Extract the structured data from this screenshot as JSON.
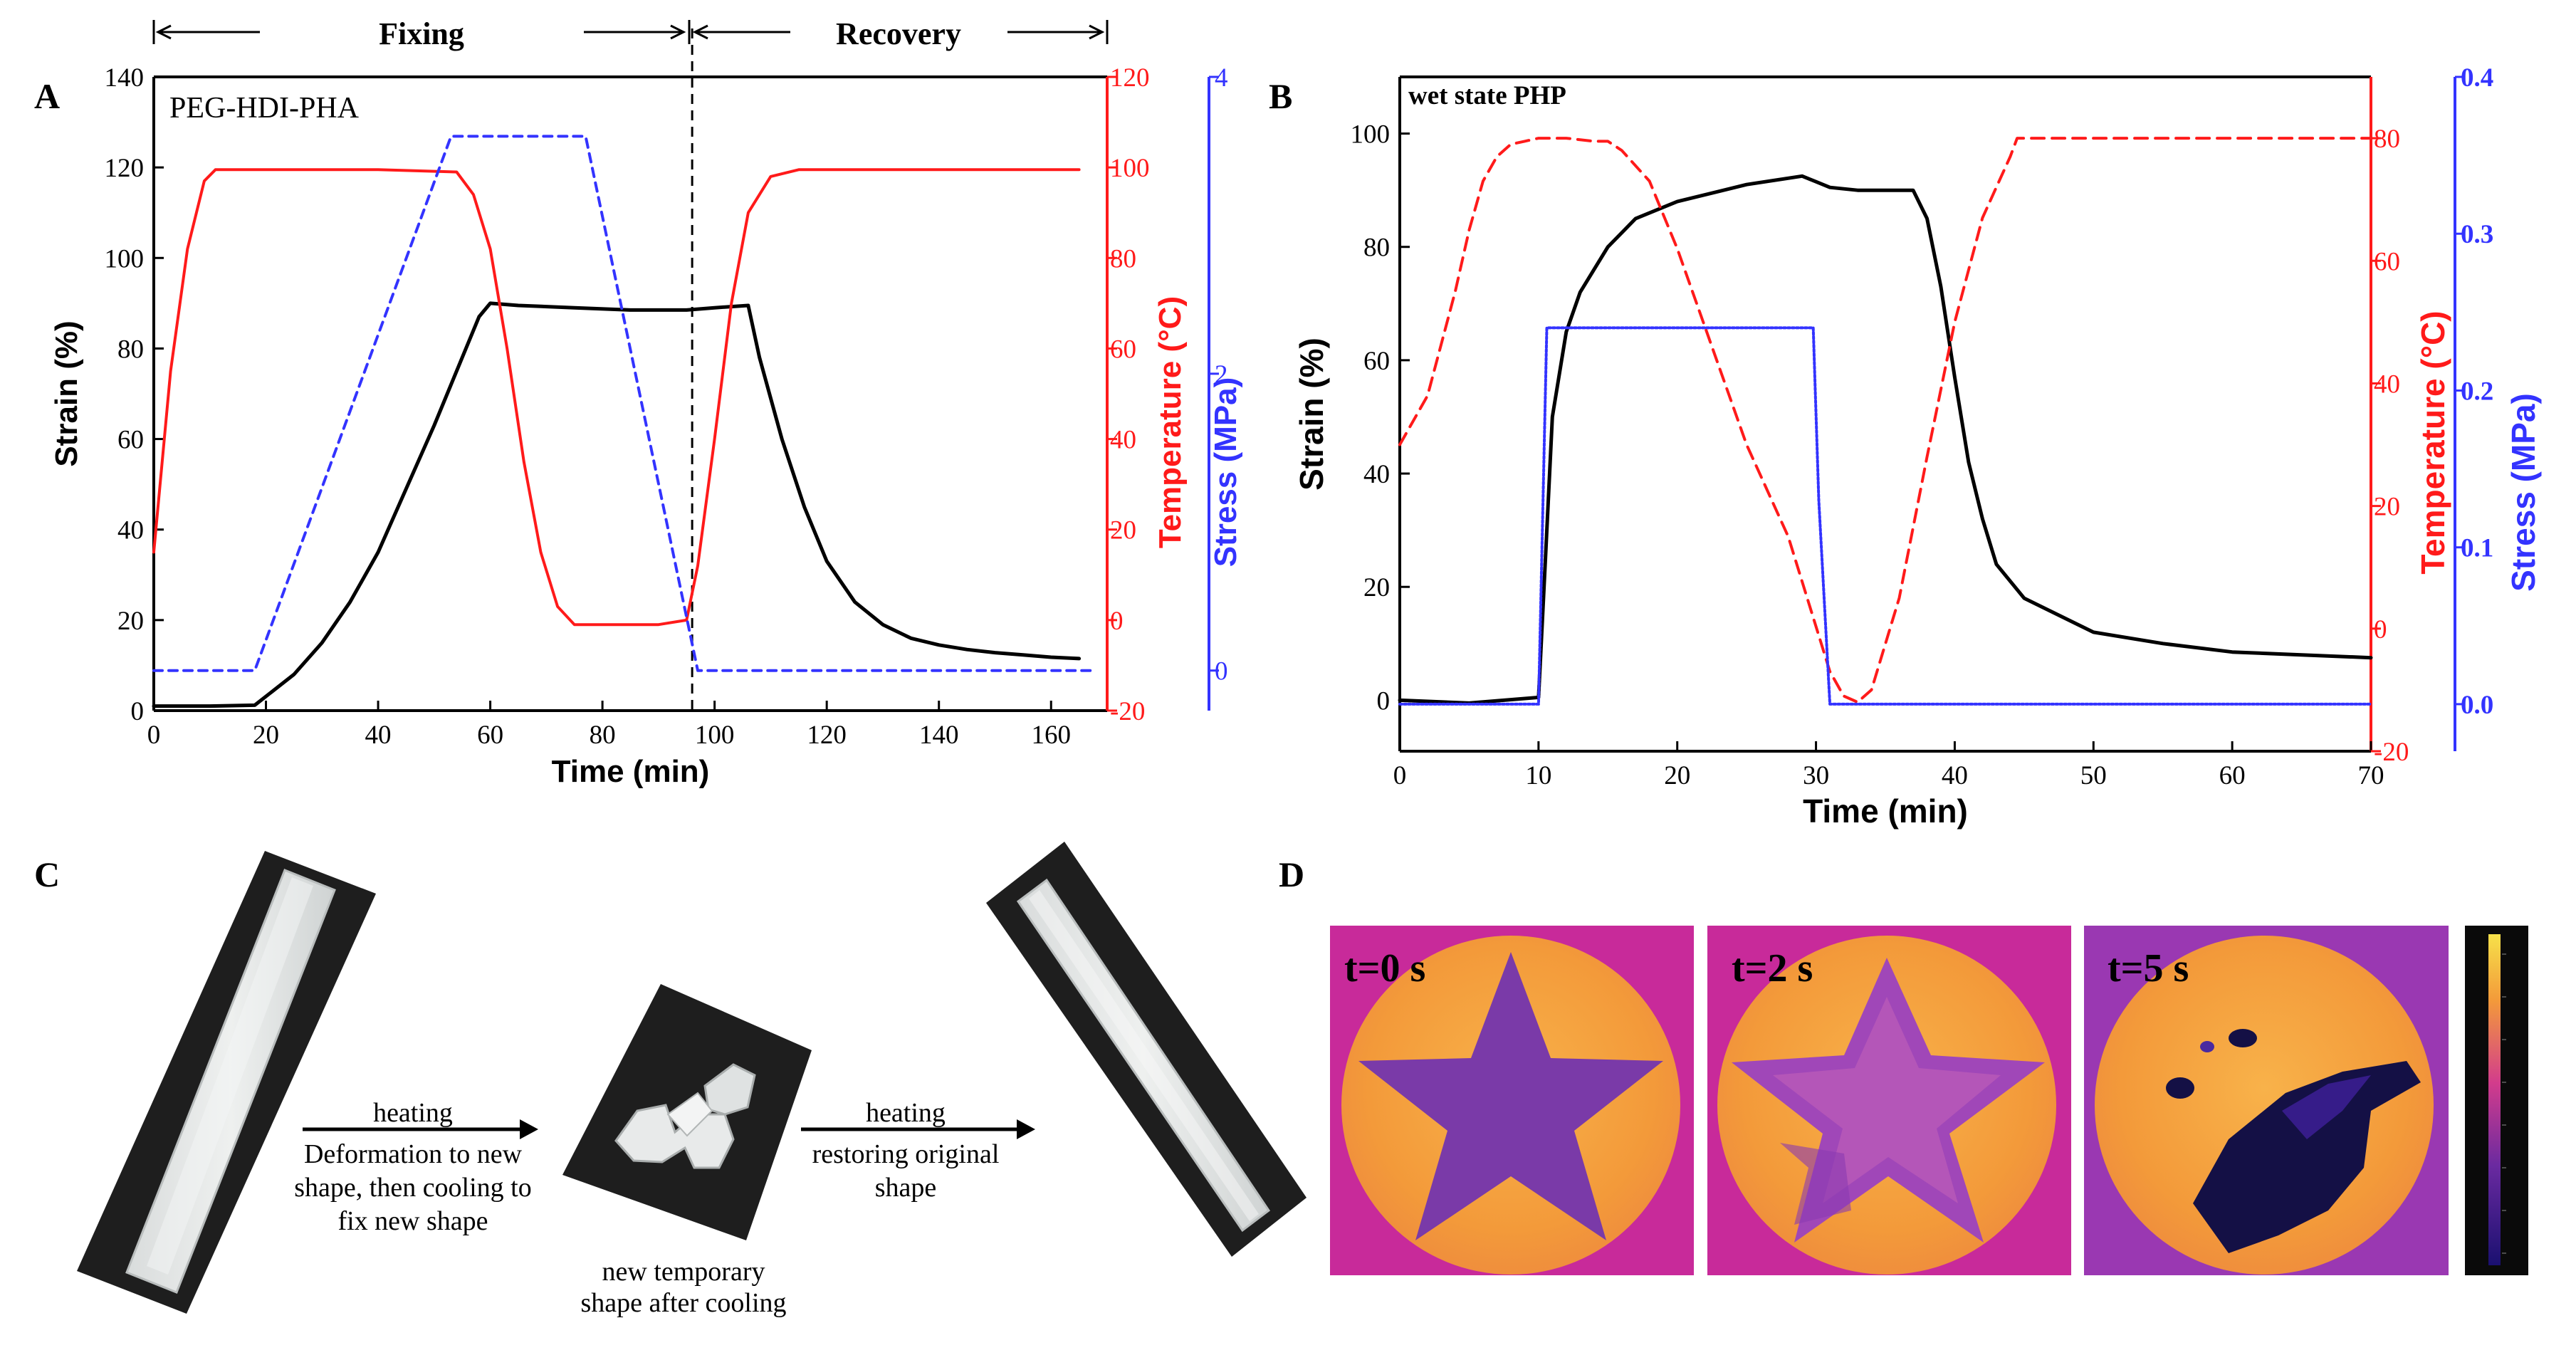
{
  "panels": {
    "A": "A",
    "B": "B",
    "C": "C",
    "D": "D"
  },
  "chart_data": [
    {
      "type": "line",
      "panel": "A",
      "title": "PEG-HDI-PHA",
      "phase_labels": [
        "Fixing",
        "Recovery"
      ],
      "phase_boundary_x": 96,
      "xlabel": "Time (min)",
      "ylabel": "Strain (%)",
      "y2label": "Temperature (°C)",
      "y3label": "Stress (MPa)",
      "xlim": [
        0,
        170
      ],
      "ylim": [
        0,
        140
      ],
      "y2lim": [
        -20,
        120
      ],
      "y3lim": [
        -0.27,
        4
      ],
      "xticks": [
        0,
        20,
        40,
        60,
        80,
        100,
        120,
        140,
        160
      ],
      "yticks": [
        0,
        20,
        40,
        60,
        80,
        100,
        120,
        140
      ],
      "y2ticks": [
        -20,
        0,
        20,
        40,
        60,
        80,
        100,
        120
      ],
      "y3ticks": [
        0,
        2,
        4
      ],
      "series": [
        {
          "name": "Strain",
          "color": "#000000",
          "axis": "y",
          "dash": "",
          "x": [
            0,
            10,
            18,
            25,
            30,
            35,
            40,
            45,
            50,
            55,
            58,
            60,
            65,
            75,
            85,
            95,
            100,
            106,
            108,
            112,
            116,
            120,
            125,
            130,
            135,
            140,
            145,
            150,
            155,
            160,
            165
          ],
          "y": [
            1,
            1,
            1.2,
            8,
            15,
            24,
            35,
            49,
            63,
            78,
            87,
            90,
            89.5,
            89,
            88.5,
            88.5,
            89,
            89.5,
            78,
            60,
            45,
            33,
            24,
            19,
            16,
            14.5,
            13.5,
            12.8,
            12.3,
            11.8,
            11.5
          ]
        },
        {
          "name": "Temperature",
          "color": "#ff1a1a",
          "axis": "y2",
          "dash": "",
          "x": [
            0,
            3,
            6,
            9,
            11,
            20,
            40,
            54,
            57,
            60,
            63,
            66,
            69,
            72,
            75,
            90,
            95,
            97,
            100,
            103,
            106,
            110,
            115,
            130,
            150,
            165
          ],
          "y": [
            15,
            55,
            82,
            97,
            99.5,
            99.5,
            99.5,
            99,
            94,
            82,
            60,
            35,
            15,
            3,
            -1,
            -1,
            0,
            12,
            40,
            70,
            90,
            98,
            99.5,
            99.5,
            99.5,
            99.5
          ]
        },
        {
          "name": "Stress",
          "color": "#3333ff",
          "axis": "y3",
          "dash": "12 9",
          "x": [
            0,
            18,
            53,
            77,
            97,
            167
          ],
          "y": [
            0,
            0,
            3.6,
            3.6,
            0,
            0
          ]
        }
      ]
    },
    {
      "type": "line",
      "panel": "B",
      "title": "wet state PHP",
      "xlabel": "Time (min)",
      "ylabel": "Strain (%)",
      "y2label": "Temperature (°C)",
      "y3label": "Stress (MPa)",
      "xlim": [
        0,
        70
      ],
      "ylim": [
        -9,
        110
      ],
      "y2lim": [
        -20,
        90
      ],
      "y3lim": [
        -0.03,
        0.4
      ],
      "xticks": [
        0,
        10,
        20,
        30,
        40,
        50,
        60,
        70
      ],
      "yticks": [
        0,
        20,
        40,
        60,
        80,
        100
      ],
      "y2ticks": [
        -20,
        0,
        20,
        40,
        60,
        80
      ],
      "y3ticks": [
        0.0,
        0.1,
        0.2,
        0.3,
        0.4
      ],
      "y3ticklabels": [
        "0.0",
        "0.1",
        "0.2",
        "0.3",
        "0.4"
      ],
      "series": [
        {
          "name": "Strain",
          "color": "#000000",
          "axis": "y",
          "dash": "",
          "x": [
            0,
            5,
            10,
            10.5,
            11,
            12,
            13,
            15,
            17,
            20,
            25,
            29,
            30,
            31,
            33,
            35,
            37,
            38,
            39,
            40,
            41,
            42,
            43,
            45,
            50,
            55,
            60,
            65,
            70
          ],
          "y": [
            0,
            -0.5,
            0.5,
            25,
            50,
            65,
            72,
            80,
            85,
            88,
            91,
            92.5,
            91.5,
            90.5,
            90,
            90,
            90,
            85,
            73,
            57,
            42,
            32,
            24,
            18,
            12,
            10,
            8.5,
            8,
            7.5
          ]
        },
        {
          "name": "Temperature",
          "color": "#ff1a1a",
          "axis": "y2",
          "dash": "18 11",
          "x": [
            0,
            2,
            4,
            5,
            6,
            7,
            8,
            9,
            10,
            12,
            14,
            15,
            16,
            18,
            20,
            25,
            28,
            31,
            32,
            33,
            34,
            36,
            38,
            40,
            42,
            44,
            44.5,
            50,
            60,
            70
          ],
          "y": [
            30,
            38,
            55,
            65,
            73,
            77,
            79,
            79.5,
            80,
            80,
            79.5,
            79.5,
            78,
            73,
            62,
            30,
            15,
            -7,
            -11,
            -12,
            -10,
            5,
            28,
            50,
            67,
            77,
            80,
            80,
            80,
            80
          ]
        },
        {
          "name": "Stress",
          "color": "#3333ff",
          "axis": "y3",
          "dash": "3 3",
          "x": [
            0,
            10,
            10.6,
            29.8,
            30.2,
            31,
            70
          ],
          "y": [
            0,
            0,
            0.24,
            0.24,
            0.13,
            0,
            0
          ]
        }
      ]
    }
  ],
  "panel_c": {
    "step1_arrow_top": "heating",
    "step1_arrow_bottom": [
      "Deformation to new",
      "shape, then cooling to",
      "fix new shape"
    ],
    "temporary_shape_caption": [
      "new temporary",
      "shape after cooling"
    ],
    "step2_arrow_top": "heating",
    "step2_arrow_bottom": [
      "restoring original",
      "shape"
    ]
  },
  "panel_d": {
    "frames": [
      "t=0 s",
      "t=2 s",
      "t=5 s"
    ],
    "colors": {
      "background": "#c82a9a",
      "hot": "#f5a23a",
      "star": "#7a3aa8",
      "cold": "#141045"
    }
  }
}
